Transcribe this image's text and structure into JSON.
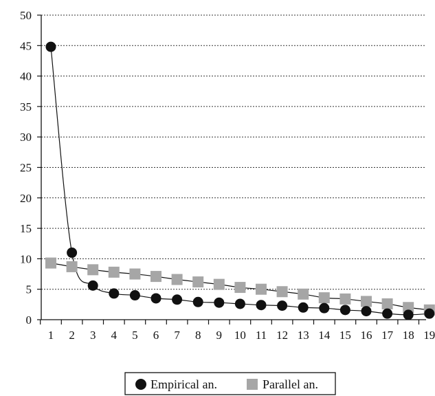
{
  "chart_data": {
    "type": "line",
    "x": [
      1,
      2,
      3,
      4,
      5,
      6,
      7,
      8,
      9,
      10,
      11,
      12,
      13,
      14,
      15,
      16,
      17,
      18,
      19
    ],
    "x_tick_labels": [
      "1",
      "2",
      "3",
      "4",
      "5",
      "6",
      "7",
      "8",
      "9",
      "10",
      "11",
      "12",
      "13",
      "14",
      "15",
      "16",
      "17",
      "18",
      "19"
    ],
    "y_tick_labels": [
      "0",
      "5",
      "10",
      "15",
      "20",
      "25",
      "30",
      "35",
      "40",
      "45",
      "50"
    ],
    "ylim": [
      0,
      50
    ],
    "grid": "horizontal dotted",
    "legend_position": "bottom-center",
    "series": [
      {
        "name": "Empirical an.",
        "marker": "circle",
        "color": "#111111",
        "values": [
          44.8,
          11.0,
          5.6,
          4.3,
          4.0,
          3.5,
          3.3,
          2.9,
          2.8,
          2.6,
          2.4,
          2.3,
          2.0,
          1.9,
          1.6,
          1.4,
          1.0,
          0.8,
          1.0
        ]
      },
      {
        "name": "Parallel an.",
        "marker": "square",
        "color": "#a6a6a6",
        "values": [
          9.3,
          8.7,
          8.2,
          7.8,
          7.5,
          7.1,
          6.6,
          6.2,
          5.8,
          5.3,
          5.0,
          4.6,
          4.2,
          3.6,
          3.4,
          3.0,
          2.6,
          2.0,
          1.6
        ]
      }
    ]
  }
}
